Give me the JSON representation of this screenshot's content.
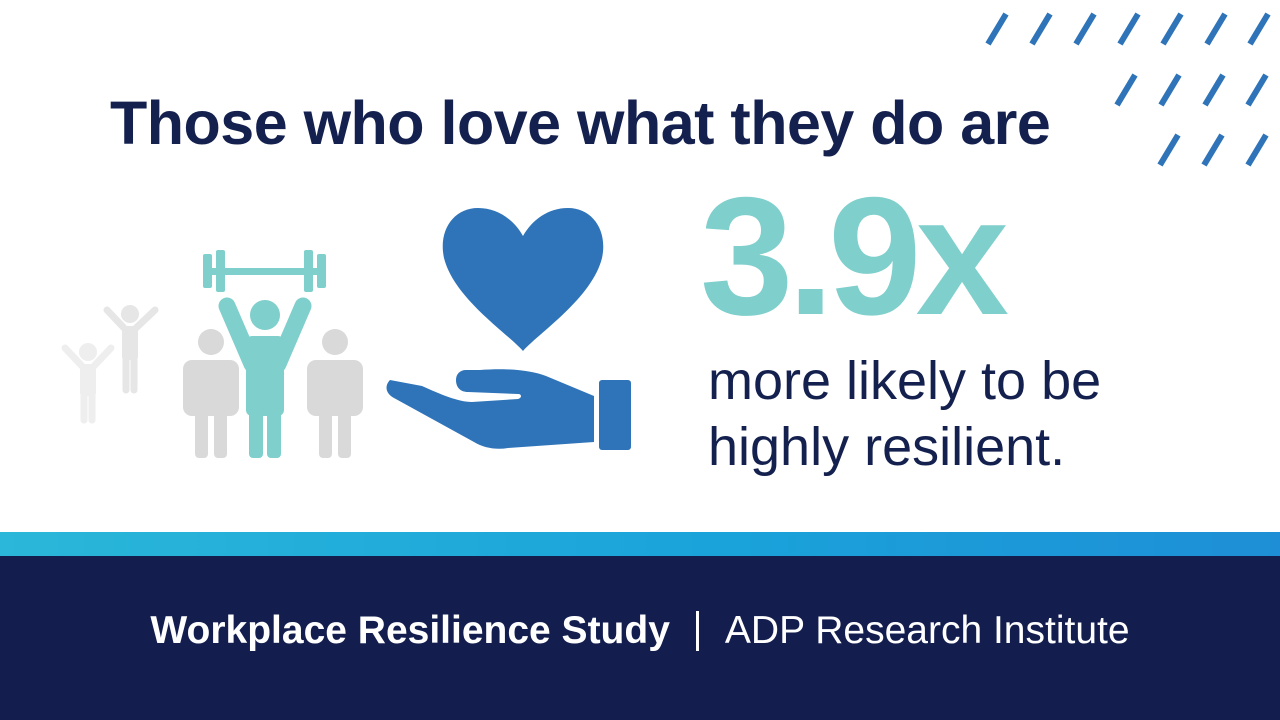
{
  "headline": "Those who love what they do are",
  "stat": {
    "value": "3.9x",
    "line1": "more likely to be",
    "line2": "highly resilient."
  },
  "footer": {
    "study": "Workplace Resilience Study",
    "separator": "|",
    "source": "ADP Research Institute"
  },
  "icons": {
    "decoration": "diagonal-dashes-pattern",
    "people": "people-group-with-weightlifter-icon",
    "heart_hand": "heart-in-hand-icon"
  },
  "colors": {
    "navy": "#14214f",
    "teal": "#7fcfcc",
    "blue": "#2f74b9",
    "gray": "#d9d9d9",
    "footer_bg": "#131e4f",
    "band_start": "#2ab7d9",
    "band_end": "#1e8fd6"
  }
}
